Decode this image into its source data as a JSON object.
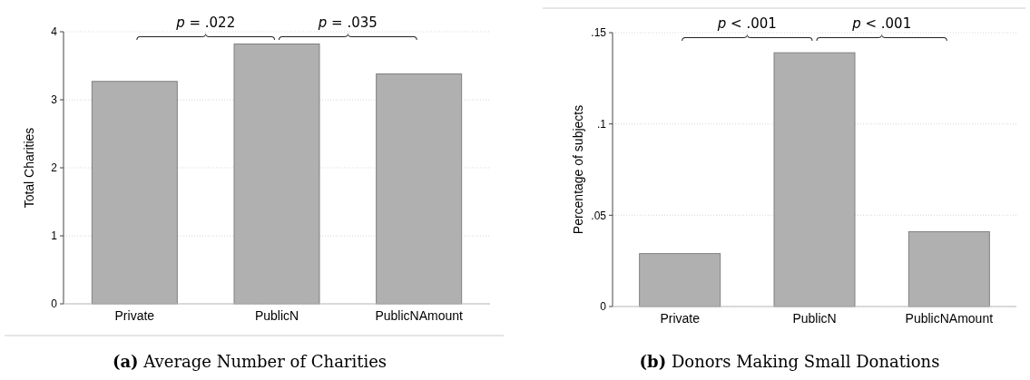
{
  "chart_data": [
    {
      "type": "bar",
      "title": "(a) Average Number of Charities",
      "ylabel": "Total Charities",
      "categories": [
        "Private",
        "PublicN",
        "PublicNAmount"
      ],
      "values": [
        3.27,
        3.82,
        3.38
      ],
      "color": "#b0b0b0",
      "ylim": [
        0,
        4
      ],
      "yticks": [
        0,
        1,
        2,
        3,
        4
      ],
      "grid": "y",
      "annotations": [
        "p = .022",
        "p = .035"
      ]
    },
    {
      "type": "bar",
      "title": "(b) Donors Making Small Donations",
      "ylabel": "Percentage of subjects",
      "categories": [
        "Private",
        "PublicN",
        "PublicNAmount"
      ],
      "values": [
        0.029,
        0.139,
        0.041
      ],
      "color": "#b0b0b0",
      "ylim": [
        0,
        0.15
      ],
      "yticks": [
        {
          "value": 0,
          "label": "0"
        },
        {
          "value": 0.05,
          "label": ".05"
        },
        {
          "value": 0.1,
          "label": ".1"
        },
        {
          "value": 0.15,
          "label": ".15"
        }
      ],
      "grid": "y",
      "annotations": [
        "p < .001",
        "p < .001"
      ]
    }
  ]
}
